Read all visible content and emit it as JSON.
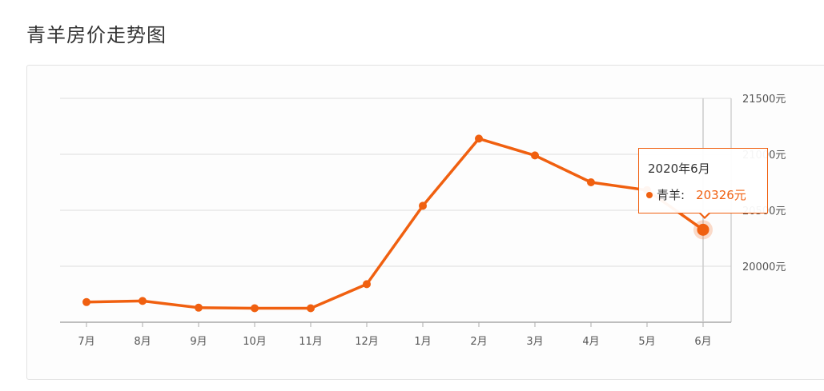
{
  "page": {
    "title": "青羊房价走势图"
  },
  "colors": {
    "line": "#f06010",
    "grid": "#dddddd",
    "axis": "#bbbbbb",
    "text": "#555555"
  },
  "tooltip": {
    "title": "2020年6月",
    "series": "青羊:",
    "value": "20326元"
  },
  "chart_data": {
    "type": "line",
    "title": "青羊房价走势图",
    "categories": [
      "7月",
      "8月",
      "9月",
      "10月",
      "11月",
      "12月",
      "1月",
      "2月",
      "3月",
      "4月",
      "5月",
      "6月"
    ],
    "series": [
      {
        "name": "青羊",
        "values": [
          19680,
          19690,
          19630,
          19625,
          19625,
          19840,
          20540,
          21140,
          20990,
          20750,
          20680,
          20326
        ]
      }
    ],
    "y_ticks": [
      "20000元",
      "20500元",
      "21000元",
      "21500元"
    ],
    "y_tick_values": [
      20000,
      20500,
      21000,
      21500
    ],
    "ylim": [
      19500,
      21500
    ],
    "y_axis_side": "right",
    "grid": true,
    "legend": "none",
    "highlighted_index": 11
  }
}
